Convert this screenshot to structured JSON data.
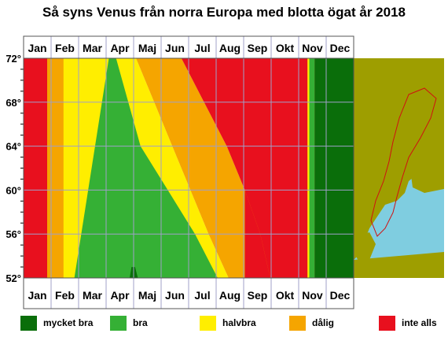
{
  "chart_data": {
    "type": "heatmap",
    "title": "Så syns Venus från norra Europa med blotta ögat år 2018",
    "months": [
      "Jan",
      "Feb",
      "Mar",
      "Apr",
      "Maj",
      "Jun",
      "Jul",
      "Aug",
      "Sep",
      "Okt",
      "Nov",
      "Dec"
    ],
    "y_ticks": [
      "72°",
      "68°",
      "64°",
      "60°",
      "56°",
      "52°"
    ],
    "y_tick_values": [
      72,
      68,
      64,
      60,
      56,
      52
    ],
    "ylim": [
      52,
      72
    ],
    "xlim_day_of_year": [
      1,
      365
    ],
    "categories": [
      {
        "key": "mycket_bra",
        "label": "mycket bra",
        "color": "#0a6e0a"
      },
      {
        "key": "bra",
        "label": "bra",
        "color": "#35b035"
      },
      {
        "key": "halvbra",
        "label": "halvbra",
        "color": "#ffee00"
      },
      {
        "key": "dalig",
        "label": "dålig",
        "color": "#f5a500"
      },
      {
        "key": "inte_alls",
        "label": "inte alls",
        "color": "#e8101e"
      }
    ],
    "bands": [
      {
        "category": "inte_alls",
        "points": [
          [
            1,
            52
          ],
          [
            1,
            72
          ],
          [
            95,
            72
          ],
          [
            95,
            52
          ]
        ]
      },
      {
        "category": "dalig",
        "points": [
          [
            27,
            52
          ],
          [
            27,
            72
          ],
          [
            95,
            72
          ],
          [
            95,
            52
          ]
        ]
      },
      {
        "category": "halvbra",
        "points": [
          [
            45,
            52
          ],
          [
            45,
            72
          ],
          [
            95,
            72
          ],
          [
            95,
            52
          ]
        ]
      },
      {
        "category": "bra",
        "points": [
          [
            57,
            52
          ],
          [
            95,
            72
          ],
          [
            95,
            52
          ]
        ]
      },
      {
        "category": "inte_alls",
        "points": [
          [
            245,
            52
          ],
          [
            245,
            72
          ],
          [
            365,
            72
          ],
          [
            365,
            52
          ]
        ]
      },
      {
        "category": "halvbra",
        "points": [
          [
            95,
            52
          ],
          [
            95,
            72
          ],
          [
            125,
            72
          ],
          [
            145,
            68
          ],
          [
            165,
            64
          ],
          [
            185,
            60
          ],
          [
            205,
            56
          ],
          [
            227,
            52
          ]
        ]
      },
      {
        "category": "dalig",
        "points": [
          [
            227,
            52
          ],
          [
            205,
            56
          ],
          [
            185,
            60
          ],
          [
            165,
            64
          ],
          [
            145,
            68
          ],
          [
            125,
            72
          ],
          [
            175,
            72
          ],
          [
            200,
            68
          ],
          [
            225,
            64
          ],
          [
            245,
            60
          ],
          [
            262,
            56
          ],
          [
            273,
            52
          ]
        ]
      },
      {
        "category": "inte_alls",
        "points": [
          [
            273,
            52
          ],
          [
            262,
            56
          ],
          [
            245,
            60
          ],
          [
            225,
            64
          ],
          [
            200,
            68
          ],
          [
            175,
            72
          ],
          [
            245,
            72
          ],
          [
            245,
            52
          ]
        ]
      },
      {
        "category": "bra",
        "points": [
          [
            95,
            52
          ],
          [
            95,
            72
          ],
          [
            103,
            72
          ],
          [
            130,
            64
          ],
          [
            160,
            60
          ],
          [
            190,
            56
          ],
          [
            215,
            52
          ]
        ]
      },
      {
        "category": "mycket_bra",
        "points": [
          [
            118,
            52
          ],
          [
            120,
            53
          ],
          [
            124,
            53
          ],
          [
            127,
            52
          ]
        ]
      },
      {
        "category": "halvbra",
        "points": [
          [
            314,
            52
          ],
          [
            314,
            72
          ],
          [
            316,
            72
          ],
          [
            316,
            52
          ]
        ]
      },
      {
        "category": "bra",
        "points": [
          [
            316,
            52
          ],
          [
            316,
            72
          ],
          [
            322,
            72
          ],
          [
            322,
            52
          ]
        ]
      },
      {
        "category": "mycket_bra",
        "points": [
          [
            322,
            52
          ],
          [
            322,
            72
          ],
          [
            365,
            72
          ],
          [
            365,
            52
          ]
        ]
      }
    ],
    "grid": true,
    "legend_position": "bottom"
  }
}
